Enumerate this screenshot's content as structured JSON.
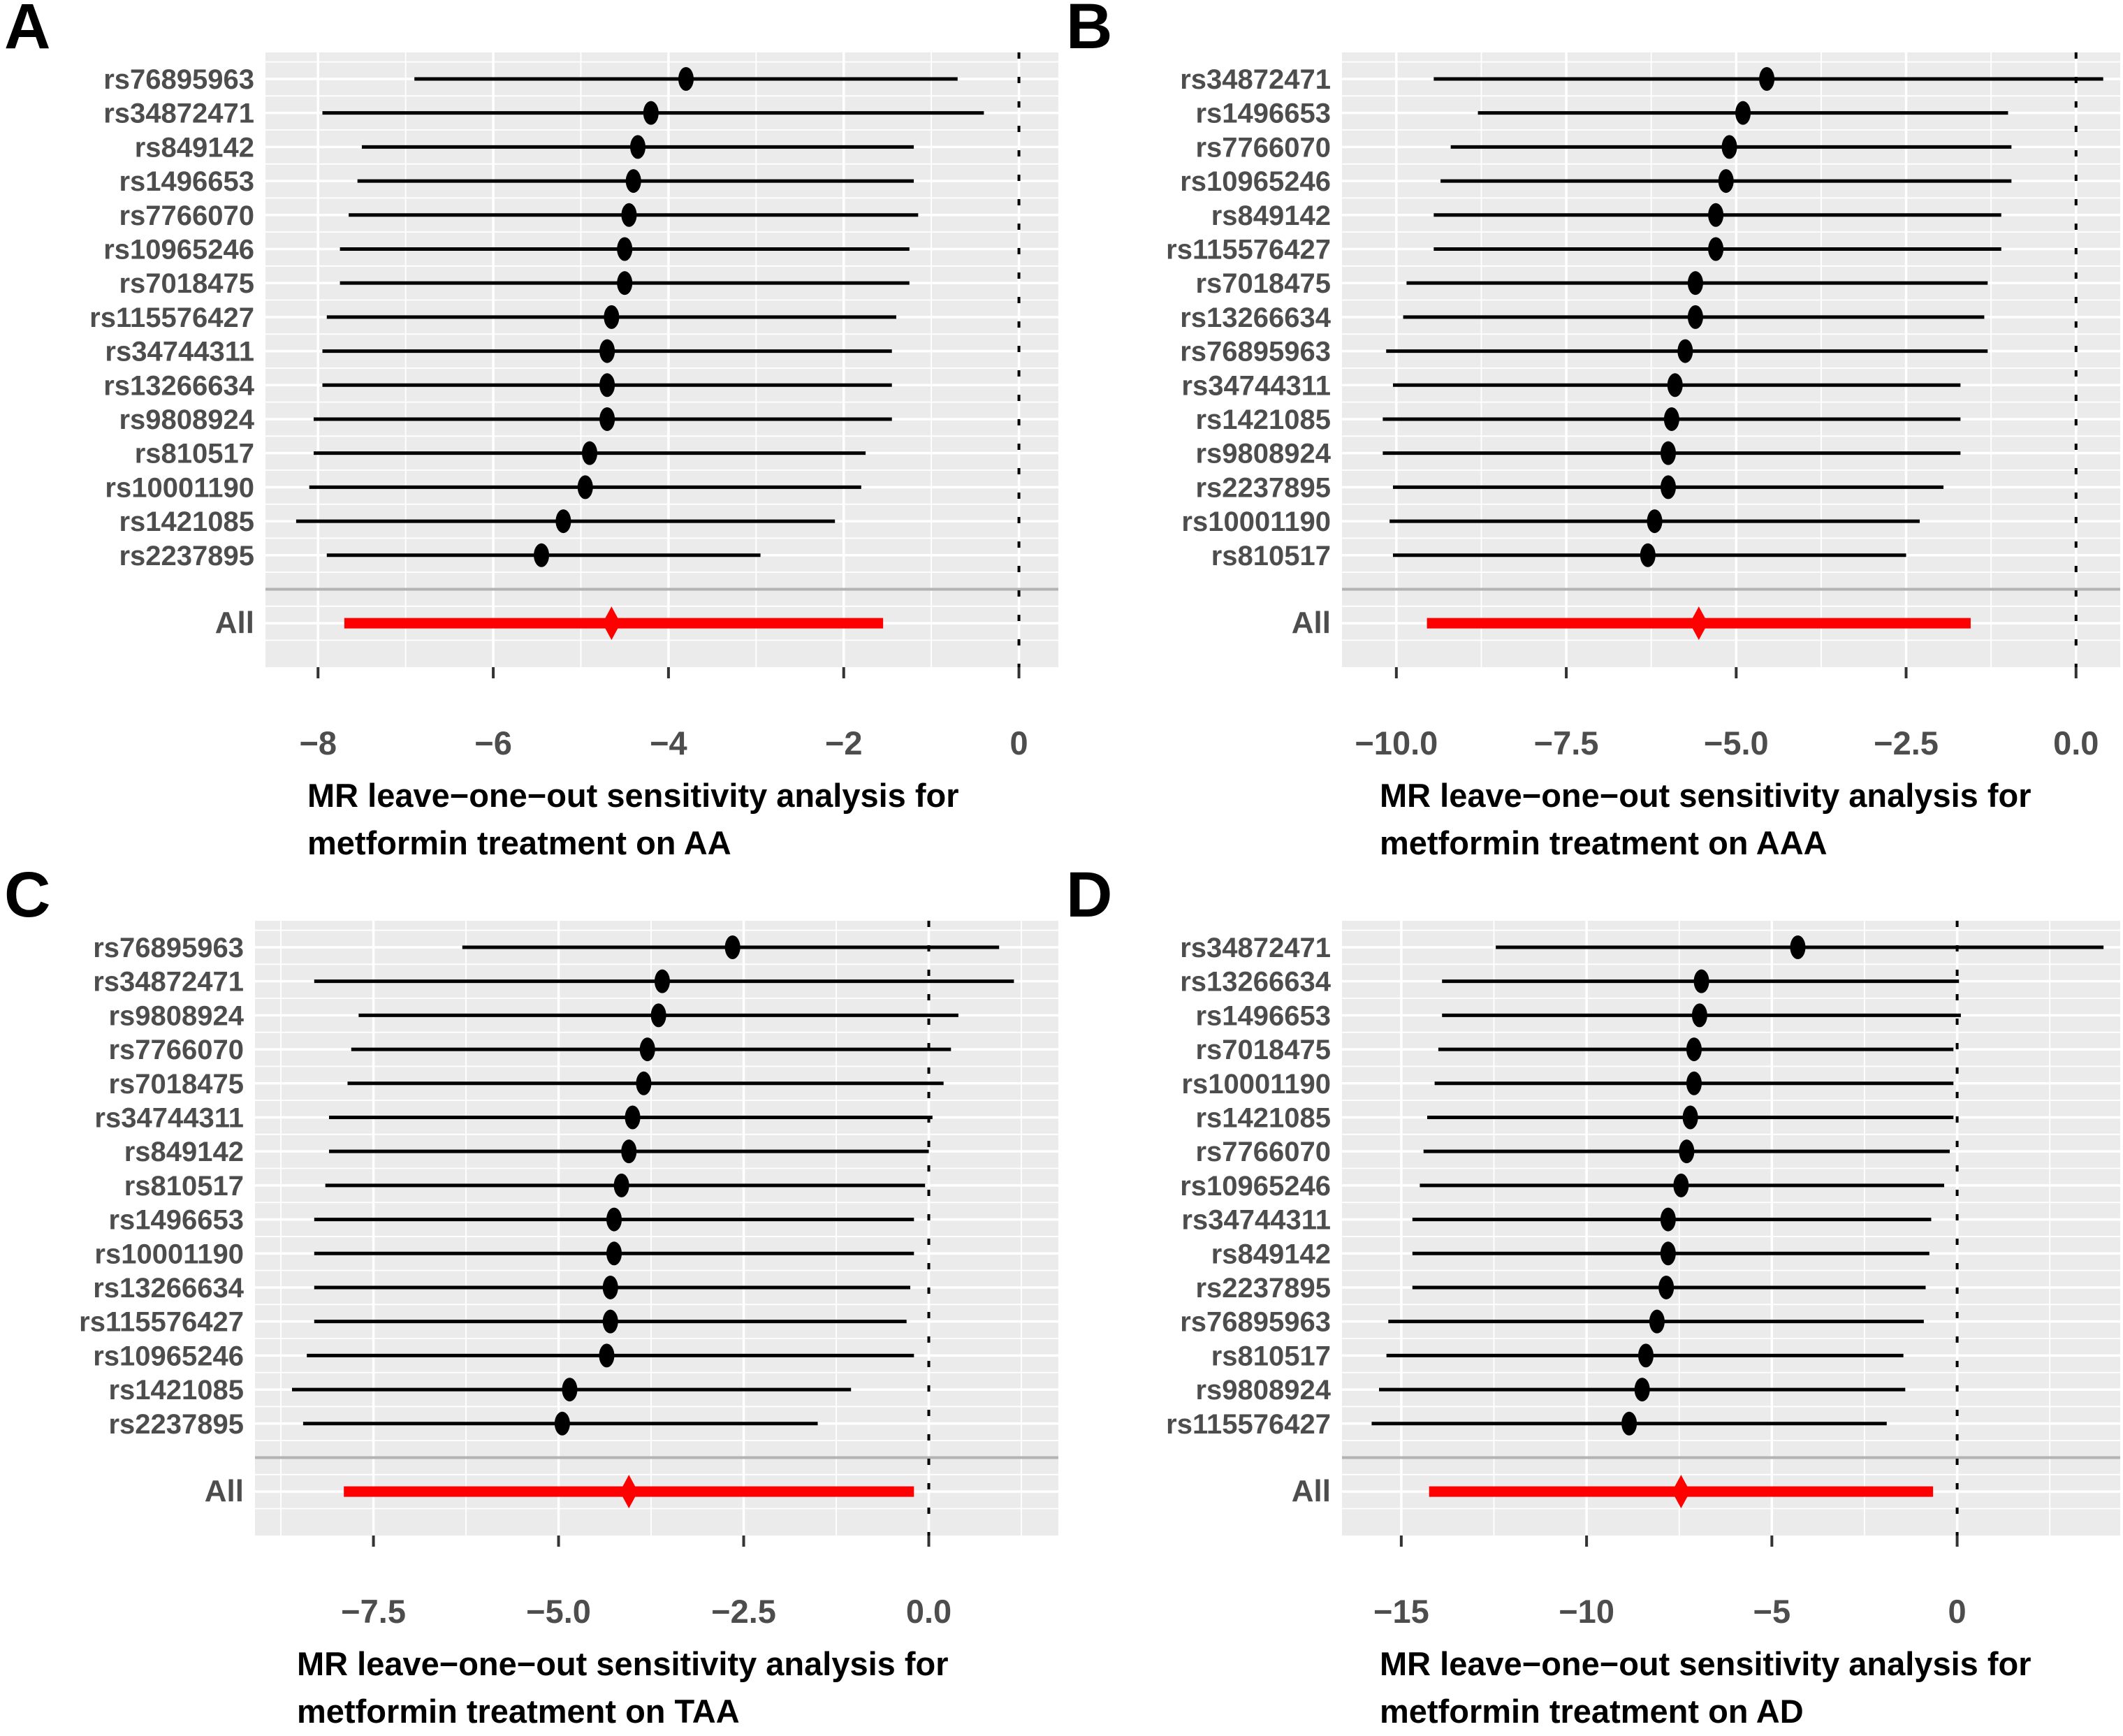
{
  "figure": {
    "background": "#FFFFFF",
    "panel_background": "#EBEBEB",
    "gridline_color": "#FFFFFF",
    "point_color": "#000000",
    "all_color": "#FF0000",
    "separator_color": "#B3B3B3",
    "axis_text_color": "#4D4D4D",
    "zero_line_color": "#000000"
  },
  "chart_data": [
    {
      "type": "forest",
      "label": "A",
      "title_line1": "MR leave−one−out sensitivity analysis for",
      "title_line2": "metformin treatment on AA",
      "xlim": [
        -8.6,
        0.45
      ],
      "ticks": [
        -8,
        -6,
        -4,
        -2,
        0
      ],
      "tick_labels": [
        "−8",
        "−6",
        "−4",
        "−2",
        "0"
      ],
      "minor_ticks": [
        -7,
        -5,
        -3,
        -1
      ],
      "zero_line": 0,
      "all_label": "All",
      "categories": [
        "rs76895963",
        "rs34872471",
        "rs849142",
        "rs1496653",
        "rs7766070",
        "rs10965246",
        "rs7018475",
        "rs115576427",
        "rs34744311",
        "rs13266634",
        "rs9808924",
        "rs810517",
        "rs10001190",
        "rs1421085",
        "rs2237895"
      ],
      "rows": [
        {
          "snp": "rs76895963",
          "est": -3.8,
          "lo": -6.9,
          "hi": -0.7
        },
        {
          "snp": "rs34872471",
          "est": -4.2,
          "lo": -7.95,
          "hi": -0.4
        },
        {
          "snp": "rs849142",
          "est": -4.35,
          "lo": -7.5,
          "hi": -1.2
        },
        {
          "snp": "rs1496653",
          "est": -4.4,
          "lo": -7.55,
          "hi": -1.2
        },
        {
          "snp": "rs7766070",
          "est": -4.45,
          "lo": -7.65,
          "hi": -1.15
        },
        {
          "snp": "rs10965246",
          "est": -4.5,
          "lo": -7.75,
          "hi": -1.25
        },
        {
          "snp": "rs7018475",
          "est": -4.5,
          "lo": -7.75,
          "hi": -1.25
        },
        {
          "snp": "rs115576427",
          "est": -4.65,
          "lo": -7.9,
          "hi": -1.4
        },
        {
          "snp": "rs34744311",
          "est": -4.7,
          "lo": -7.95,
          "hi": -1.45
        },
        {
          "snp": "rs13266634",
          "est": -4.7,
          "lo": -7.95,
          "hi": -1.45
        },
        {
          "snp": "rs9808924",
          "est": -4.7,
          "lo": -8.05,
          "hi": -1.45
        },
        {
          "snp": "rs810517",
          "est": -4.9,
          "lo": -8.05,
          "hi": -1.75
        },
        {
          "snp": "rs10001190",
          "est": -4.95,
          "lo": -8.1,
          "hi": -1.8
        },
        {
          "snp": "rs1421085",
          "est": -5.2,
          "lo": -8.25,
          "hi": -2.1
        },
        {
          "snp": "rs2237895",
          "est": -5.45,
          "lo": -7.9,
          "hi": -2.95
        }
      ],
      "all": {
        "est": -4.65,
        "lo": -7.7,
        "hi": -1.55
      }
    },
    {
      "type": "forest",
      "label": "B",
      "title_line1": "MR leave−one−out sensitivity analysis for",
      "title_line2": "metformin treatment on AAA",
      "xlim": [
        -10.8,
        0.65
      ],
      "ticks": [
        -10,
        -7.5,
        -5,
        -2.5,
        0
      ],
      "tick_labels": [
        "−10.0",
        "−7.5",
        "−5.0",
        "−2.5",
        "0.0"
      ],
      "minor_ticks": [
        -8.75,
        -6.25,
        -3.75,
        -1.25
      ],
      "zero_line": 0,
      "all_label": "All",
      "categories": [
        "rs34872471",
        "rs1496653",
        "rs7766070",
        "rs10965246",
        "rs849142",
        "rs115576427",
        "rs7018475",
        "rs13266634",
        "rs76895963",
        "rs34744311",
        "rs1421085",
        "rs9808924",
        "rs2237895",
        "rs10001190",
        "rs810517"
      ],
      "rows": [
        {
          "snp": "rs34872471",
          "est": -4.55,
          "lo": -9.45,
          "hi": 0.4
        },
        {
          "snp": "rs1496653",
          "est": -4.9,
          "lo": -8.8,
          "hi": -1.0
        },
        {
          "snp": "rs7766070",
          "est": -5.1,
          "lo": -9.2,
          "hi": -0.95
        },
        {
          "snp": "rs10965246",
          "est": -5.15,
          "lo": -9.35,
          "hi": -0.95
        },
        {
          "snp": "rs849142",
          "est": -5.3,
          "lo": -9.45,
          "hi": -1.1
        },
        {
          "snp": "rs115576427",
          "est": -5.3,
          "lo": -9.45,
          "hi": -1.1
        },
        {
          "snp": "rs7018475",
          "est": -5.6,
          "lo": -9.85,
          "hi": -1.3
        },
        {
          "snp": "rs13266634",
          "est": -5.6,
          "lo": -9.9,
          "hi": -1.35
        },
        {
          "snp": "rs76895963",
          "est": -5.75,
          "lo": -10.15,
          "hi": -1.3
        },
        {
          "snp": "rs34744311",
          "est": -5.9,
          "lo": -10.05,
          "hi": -1.7
        },
        {
          "snp": "rs1421085",
          "est": -5.95,
          "lo": -10.2,
          "hi": -1.7
        },
        {
          "snp": "rs9808924",
          "est": -6.0,
          "lo": -10.2,
          "hi": -1.7
        },
        {
          "snp": "rs2237895",
          "est": -6.0,
          "lo": -10.05,
          "hi": -1.95
        },
        {
          "snp": "rs10001190",
          "est": -6.2,
          "lo": -10.1,
          "hi": -2.3
        },
        {
          "snp": "rs810517",
          "est": -6.3,
          "lo": -10.05,
          "hi": -2.5
        }
      ],
      "all": {
        "est": -5.55,
        "lo": -9.55,
        "hi": -1.55
      }
    },
    {
      "type": "forest",
      "label": "C",
      "title_line1": "MR leave−one−out sensitivity analysis for",
      "title_line2": "metformin treatment on TAA",
      "xlim": [
        -9.1,
        1.75
      ],
      "ticks": [
        -7.5,
        -5,
        -2.5,
        0
      ],
      "tick_labels": [
        "−7.5",
        "−5.0",
        "−2.5",
        "0.0"
      ],
      "minor_ticks": [
        -8.75,
        -6.25,
        -3.75,
        -1.25,
        1.25
      ],
      "zero_line": 0,
      "all_label": "All",
      "categories": [
        "rs76895963",
        "rs34872471",
        "rs9808924",
        "rs7766070",
        "rs7018475",
        "rs34744311",
        "rs849142",
        "rs810517",
        "rs1496653",
        "rs10001190",
        "rs13266634",
        "rs115576427",
        "rs10965246",
        "rs1421085",
        "rs2237895"
      ],
      "rows": [
        {
          "snp": "rs76895963",
          "est": -2.65,
          "lo": -6.3,
          "hi": 0.95
        },
        {
          "snp": "rs34872471",
          "est": -3.6,
          "lo": -8.3,
          "hi": 1.15
        },
        {
          "snp": "rs9808924",
          "est": -3.65,
          "lo": -7.7,
          "hi": 0.4
        },
        {
          "snp": "rs7766070",
          "est": -3.8,
          "lo": -7.8,
          "hi": 0.3
        },
        {
          "snp": "rs7018475",
          "est": -3.85,
          "lo": -7.85,
          "hi": 0.2
        },
        {
          "snp": "rs34744311",
          "est": -4.0,
          "lo": -8.1,
          "hi": 0.05
        },
        {
          "snp": "rs849142",
          "est": -4.05,
          "lo": -8.1,
          "hi": 0.0
        },
        {
          "snp": "rs810517",
          "est": -4.15,
          "lo": -8.15,
          "hi": -0.05
        },
        {
          "snp": "rs1496653",
          "est": -4.25,
          "lo": -8.3,
          "hi": -0.2
        },
        {
          "snp": "rs10001190",
          "est": -4.25,
          "lo": -8.3,
          "hi": -0.2
        },
        {
          "snp": "rs13266634",
          "est": -4.3,
          "lo": -8.3,
          "hi": -0.25
        },
        {
          "snp": "rs115576427",
          "est": -4.3,
          "lo": -8.3,
          "hi": -0.3
        },
        {
          "snp": "rs10965246",
          "est": -4.35,
          "lo": -8.4,
          "hi": -0.2
        },
        {
          "snp": "rs1421085",
          "est": -4.85,
          "lo": -8.6,
          "hi": -1.05
        },
        {
          "snp": "rs2237895",
          "est": -4.95,
          "lo": -8.45,
          "hi": -1.5
        }
      ],
      "all": {
        "est": -4.05,
        "lo": -7.9,
        "hi": -0.2
      }
    },
    {
      "type": "forest",
      "label": "D",
      "title_line1": "MR leave−one−out sensitivity analysis for",
      "title_line2": "metformin treatment on AD",
      "xlim": [
        -16.6,
        4.4
      ],
      "ticks": [
        -15,
        -10,
        -5,
        0
      ],
      "tick_labels": [
        "−15",
        "−10",
        "−5",
        "0"
      ],
      "minor_ticks": [
        -12.5,
        -7.5,
        -2.5,
        2.5
      ],
      "zero_line": 0,
      "all_label": "All",
      "categories": [
        "rs34872471",
        "rs13266634",
        "rs1496653",
        "rs7018475",
        "rs10001190",
        "rs1421085",
        "rs7766070",
        "rs10965246",
        "rs34744311",
        "rs849142",
        "rs2237895",
        "rs76895963",
        "rs810517",
        "rs9808924",
        "rs115576427"
      ],
      "rows": [
        {
          "snp": "rs34872471",
          "est": -4.3,
          "lo": -12.45,
          "hi": 3.95
        },
        {
          "snp": "rs13266634",
          "est": -6.9,
          "lo": -13.9,
          "hi": 0.05
        },
        {
          "snp": "rs1496653",
          "est": -6.95,
          "lo": -13.9,
          "hi": 0.1
        },
        {
          "snp": "rs7018475",
          "est": -7.1,
          "lo": -14.0,
          "hi": -0.1
        },
        {
          "snp": "rs10001190",
          "est": -7.1,
          "lo": -14.1,
          "hi": -0.1
        },
        {
          "snp": "rs1421085",
          "est": -7.2,
          "lo": -14.3,
          "hi": -0.1
        },
        {
          "snp": "rs7766070",
          "est": -7.3,
          "lo": -14.4,
          "hi": -0.2
        },
        {
          "snp": "rs10965246",
          "est": -7.45,
          "lo": -14.5,
          "hi": -0.35
        },
        {
          "snp": "rs34744311",
          "est": -7.8,
          "lo": -14.7,
          "hi": -0.7
        },
        {
          "snp": "rs849142",
          "est": -7.8,
          "lo": -14.7,
          "hi": -0.75
        },
        {
          "snp": "rs2237895",
          "est": -7.85,
          "lo": -14.7,
          "hi": -0.85
        },
        {
          "snp": "rs76895963",
          "est": -8.1,
          "lo": -15.35,
          "hi": -0.9
        },
        {
          "snp": "rs810517",
          "est": -8.4,
          "lo": -15.4,
          "hi": -1.45
        },
        {
          "snp": "rs9808924",
          "est": -8.5,
          "lo": -15.6,
          "hi": -1.4
        },
        {
          "snp": "rs115576427",
          "est": -8.85,
          "lo": -15.8,
          "hi": -1.9
        }
      ],
      "all": {
        "est": -7.45,
        "lo": -14.25,
        "hi": -0.65
      }
    }
  ]
}
